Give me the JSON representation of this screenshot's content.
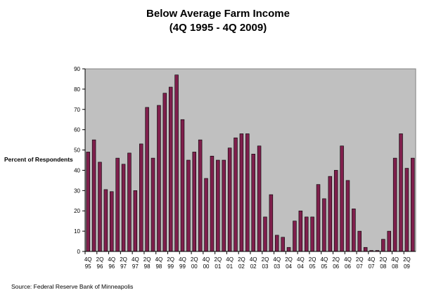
{
  "chart_data": {
    "type": "bar",
    "title": "Below Average Farm Income",
    "subtitle": "(4Q 1995 - 4Q 2009)",
    "ylabel": "Percent of Respondents",
    "xlabel": "",
    "ylim": [
      0,
      90
    ],
    "yticks": [
      0,
      10,
      20,
      30,
      40,
      50,
      60,
      70,
      80,
      90
    ],
    "grid": false,
    "legend": "none",
    "colors": {
      "plot_background": "#c0c0c0",
      "bar_fill": "#7f1f4c",
      "bar_edge": "#000000"
    },
    "x_tick_labels": [
      {
        "q": "4Q",
        "y": "95"
      },
      {
        "q": "2Q",
        "y": "96"
      },
      {
        "q": "4Q",
        "y": "96"
      },
      {
        "q": "2Q",
        "y": "97"
      },
      {
        "q": "4Q",
        "y": "97"
      },
      {
        "q": "2Q",
        "y": "98"
      },
      {
        "q": "4Q",
        "y": "98"
      },
      {
        "q": "2Q",
        "y": "99"
      },
      {
        "q": "4Q",
        "y": "99"
      },
      {
        "q": "2Q",
        "y": "00"
      },
      {
        "q": "4Q",
        "y": "00"
      },
      {
        "q": "2Q",
        "y": "01"
      },
      {
        "q": "4Q",
        "y": "01"
      },
      {
        "q": "2Q",
        "y": "02"
      },
      {
        "q": "4Q",
        "y": "02"
      },
      {
        "q": "2Q",
        "y": "03"
      },
      {
        "q": "4Q",
        "y": "03"
      },
      {
        "q": "2Q",
        "y": "04"
      },
      {
        "q": "4Q",
        "y": "04"
      },
      {
        "q": "2Q",
        "y": "05"
      },
      {
        "q": "4Q",
        "y": "05"
      },
      {
        "q": "2Q",
        "y": "06"
      },
      {
        "q": "4Q",
        "y": "06"
      },
      {
        "q": "2Q",
        "y": "07"
      },
      {
        "q": "4Q",
        "y": "07"
      },
      {
        "q": "2Q",
        "y": "08"
      },
      {
        "q": "4Q",
        "y": "08"
      },
      {
        "q": "2Q",
        "y": "09"
      }
    ],
    "values": [
      49,
      55,
      44,
      30.5,
      29.5,
      46,
      43,
      48.5,
      30,
      53,
      71,
      46,
      72,
      78,
      81,
      87,
      65,
      45,
      49,
      55,
      36,
      47,
      45,
      45,
      51,
      56,
      58,
      58,
      48,
      52,
      17,
      28,
      8,
      7,
      2,
      15,
      20,
      17,
      17,
      33,
      26,
      37,
      40,
      52,
      35,
      21,
      10,
      2,
      0.5,
      0.5,
      6,
      10,
      46,
      58,
      41,
      46
    ]
  },
  "source": "Source: Federal Reserve Bank of Minneapolis"
}
